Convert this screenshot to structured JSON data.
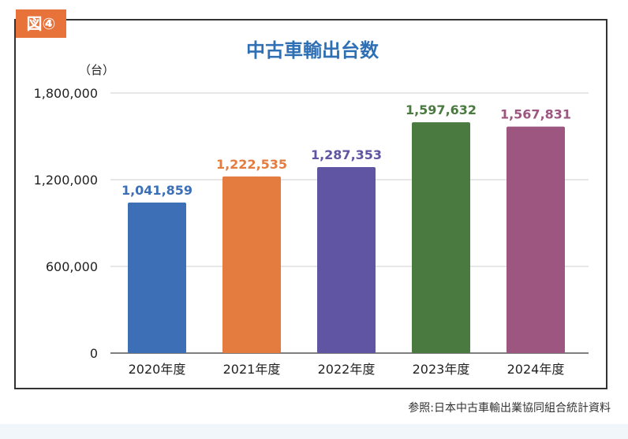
{
  "figure": {
    "badge": "図④",
    "source": "参照:日本中古車輸出業協同組合統計資料"
  },
  "chart_data": {
    "type": "bar",
    "title": "中古車輸出台数",
    "ylabel": "（台）",
    "xlabel": "",
    "categories": [
      "2020年度",
      "2021年度",
      "2022年度",
      "2023年度",
      "2024年度"
    ],
    "values": [
      1041859,
      1222535,
      1287353,
      1597632,
      1567831
    ],
    "value_labels": [
      "1,041,859",
      "1,222,535",
      "1,287,353",
      "1,597,632",
      "1,567,831"
    ],
    "colors": [
      "#3d6fb6",
      "#e47c3f",
      "#5f55a2",
      "#4b7a40",
      "#9c5680"
    ],
    "ylim": [
      0,
      1800000
    ],
    "yticks": [
      0,
      600000,
      1200000,
      1800000
    ],
    "ytick_labels": [
      "0",
      "600,000",
      "1,200,000",
      "1,800,000"
    ],
    "grid": true,
    "title_color": "#2f6fb3"
  }
}
